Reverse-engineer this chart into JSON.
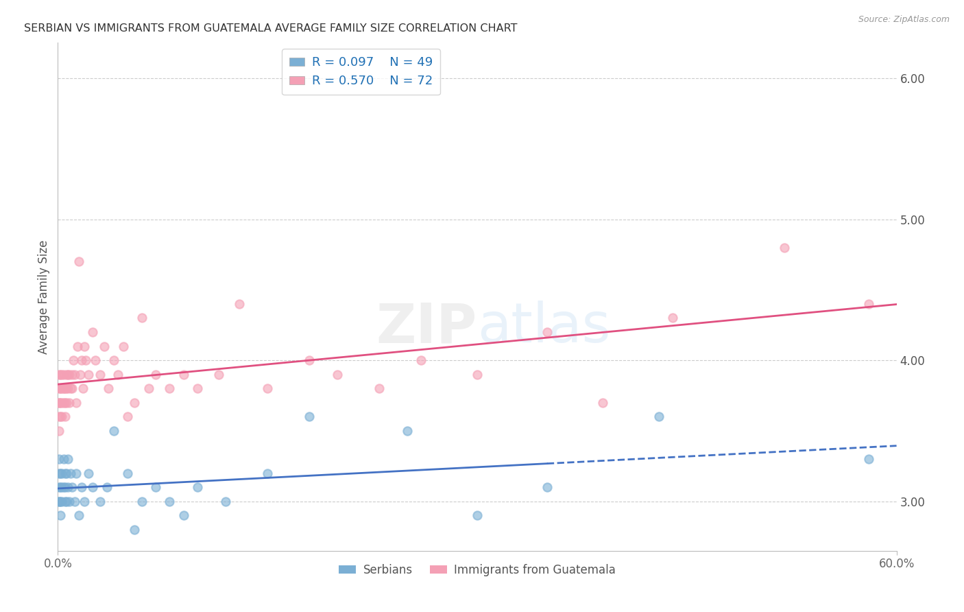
{
  "title": "SERBIAN VS IMMIGRANTS FROM GUATEMALA AVERAGE FAMILY SIZE CORRELATION CHART",
  "source": "Source: ZipAtlas.com",
  "ylabel": "Average Family Size",
  "right_yticks": [
    3.0,
    4.0,
    5.0,
    6.0
  ],
  "R_serbian": 0.097,
  "N_serbian": 49,
  "R_guatemalan": 0.57,
  "N_guatemalan": 72,
  "legend_label_1": "Serbians",
  "legend_label_2": "Immigrants from Guatemala",
  "color_serbian": "#7bafd4",
  "color_guatemalan": "#f4a0b5",
  "color_serbian_line": "#4472c4",
  "color_guatemalan_line": "#e05080",
  "color_text_blue": "#2171b5",
  "background_color": "#ffffff",
  "xlim": [
    0.0,
    0.6
  ],
  "ylim": [
    2.65,
    6.25
  ],
  "serbian_x": [
    0.001,
    0.001,
    0.001,
    0.001,
    0.001,
    0.002,
    0.002,
    0.002,
    0.002,
    0.003,
    0.003,
    0.003,
    0.004,
    0.004,
    0.005,
    0.005,
    0.005,
    0.006,
    0.006,
    0.007,
    0.007,
    0.008,
    0.009,
    0.01,
    0.012,
    0.013,
    0.015,
    0.017,
    0.019,
    0.022,
    0.025,
    0.03,
    0.035,
    0.04,
    0.05,
    0.055,
    0.06,
    0.07,
    0.08,
    0.09,
    0.1,
    0.12,
    0.15,
    0.18,
    0.25,
    0.3,
    0.35,
    0.43,
    0.58
  ],
  "serbian_y": [
    3.2,
    3.1,
    3.0,
    3.3,
    3.0,
    3.1,
    3.2,
    3.0,
    2.9,
    3.1,
    3.0,
    3.2,
    3.1,
    3.3,
    3.0,
    3.2,
    3.1,
    3.2,
    3.0,
    3.1,
    3.3,
    3.0,
    3.2,
    3.1,
    3.0,
    3.2,
    2.9,
    3.1,
    3.0,
    3.2,
    3.1,
    3.0,
    3.1,
    3.5,
    3.2,
    2.8,
    3.0,
    3.1,
    3.0,
    2.9,
    3.1,
    3.0,
    3.2,
    3.6,
    3.5,
    2.9,
    3.1,
    3.6,
    3.3
  ],
  "guatemalan_x": [
    0.001,
    0.001,
    0.001,
    0.001,
    0.001,
    0.001,
    0.002,
    0.002,
    0.002,
    0.002,
    0.002,
    0.003,
    0.003,
    0.003,
    0.003,
    0.004,
    0.004,
    0.004,
    0.004,
    0.005,
    0.005,
    0.005,
    0.006,
    0.006,
    0.006,
    0.007,
    0.007,
    0.008,
    0.008,
    0.009,
    0.01,
    0.01,
    0.011,
    0.012,
    0.013,
    0.014,
    0.015,
    0.016,
    0.017,
    0.018,
    0.019,
    0.02,
    0.022,
    0.025,
    0.027,
    0.03,
    0.033,
    0.036,
    0.04,
    0.043,
    0.047,
    0.05,
    0.055,
    0.06,
    0.065,
    0.07,
    0.08,
    0.09,
    0.1,
    0.115,
    0.13,
    0.15,
    0.18,
    0.2,
    0.23,
    0.26,
    0.3,
    0.35,
    0.39,
    0.44,
    0.52,
    0.58
  ],
  "guatemalan_y": [
    3.7,
    3.8,
    3.6,
    3.9,
    3.7,
    3.5,
    3.8,
    3.9,
    3.7,
    3.8,
    3.6,
    3.7,
    3.8,
    3.9,
    3.6,
    3.7,
    3.8,
    3.9,
    3.8,
    3.6,
    3.7,
    3.8,
    3.9,
    3.8,
    3.7,
    3.9,
    3.8,
    3.7,
    3.9,
    3.8,
    3.9,
    3.8,
    4.0,
    3.9,
    3.7,
    4.1,
    4.7,
    3.9,
    4.0,
    3.8,
    4.1,
    4.0,
    3.9,
    4.2,
    4.0,
    3.9,
    4.1,
    3.8,
    4.0,
    3.9,
    4.1,
    3.6,
    3.7,
    4.3,
    3.8,
    3.9,
    3.8,
    3.9,
    3.8,
    3.9,
    4.4,
    3.8,
    4.0,
    3.9,
    3.8,
    4.0,
    3.9,
    4.2,
    3.7,
    4.3,
    4.8,
    4.4
  ]
}
